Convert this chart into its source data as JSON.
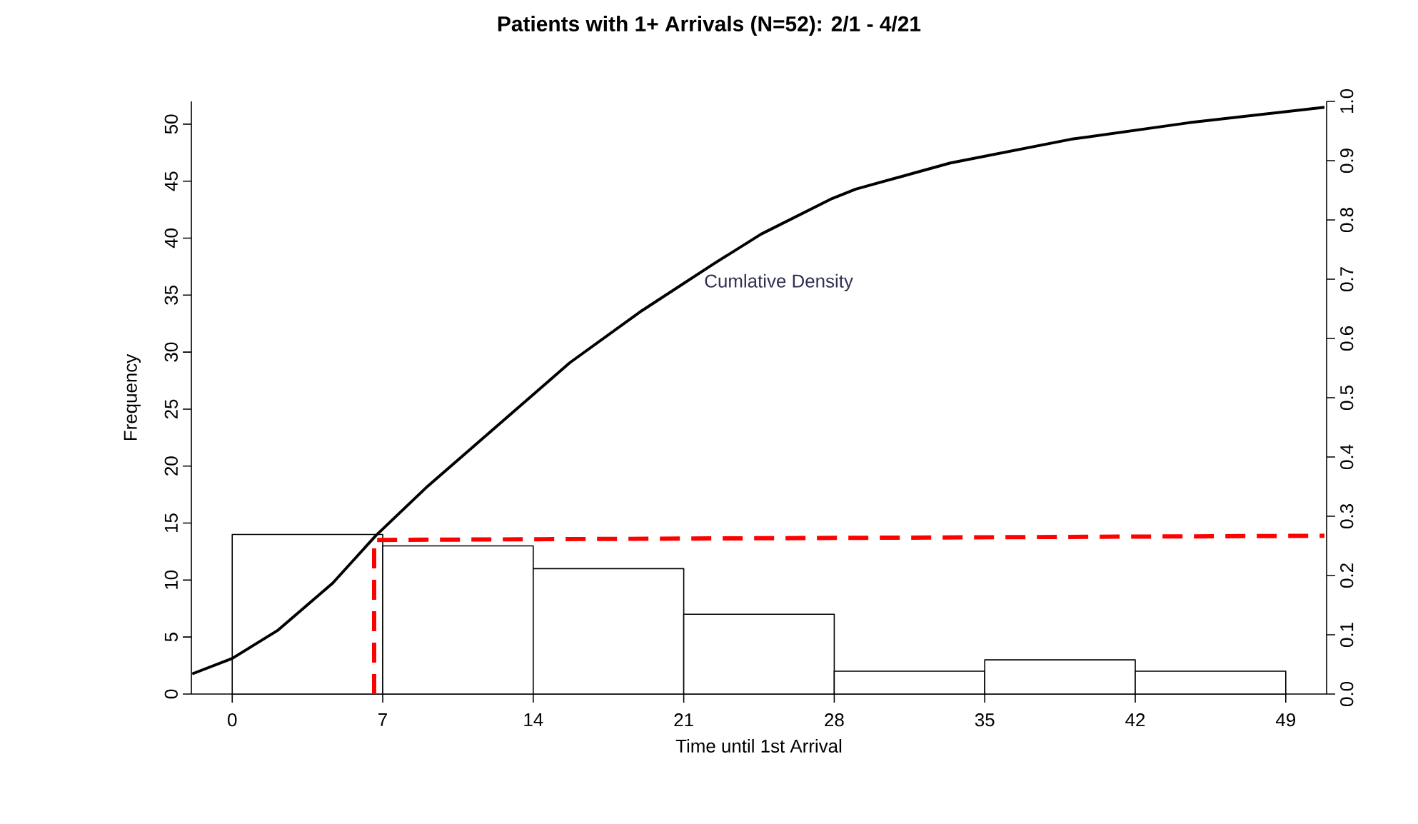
{
  "chart_data": {
    "type": "histogram",
    "title": "Patients with 1+ Arrivals (N=52): 2/1 - 4/21",
    "xlabel": "Time until 1st Arrival",
    "ylabel": "Frequency",
    "bins": [
      0,
      7,
      14,
      21,
      28,
      35,
      42,
      49
    ],
    "values": [
      14,
      13,
      11,
      7,
      2,
      3,
      2
    ],
    "color": "#ffffff",
    "series": [
      {
        "type": "line",
        "name": "Cumlative Density",
        "axis": "y2",
        "color": "#000000",
        "line_style": "solid",
        "x": [
          -1.86,
          0,
          2.1,
          4.67,
          6.67,
          9.1,
          12.4,
          15.7,
          19.06,
          22.4,
          24.6,
          27.9,
          29.0,
          33.4,
          39.0,
          44.5,
          50.8
        ],
        "values": [
          0.034,
          0.06,
          0.107,
          0.187,
          0.267,
          0.351,
          0.455,
          0.559,
          0.647,
          0.726,
          0.776,
          0.836,
          0.852,
          0.896,
          0.936,
          0.964,
          0.99
        ]
      },
      {
        "type": "line",
        "axis": "y2",
        "color": "#ff0000",
        "line_style": "dashed",
        "x": [
          6.6,
          6.6,
          50.8
        ],
        "values": [
          0,
          0.26,
          0.267
        ]
      }
    ],
    "xlim": [
      -1.9,
      50.9
    ],
    "ylim": [
      0,
      52
    ],
    "y2lim": [
      0,
      1.0
    ],
    "xticks": [
      0,
      7,
      14,
      21,
      28,
      35,
      42,
      49
    ],
    "yticks": [
      0,
      5,
      10,
      15,
      20,
      25,
      30,
      35,
      40,
      45,
      50
    ],
    "y2ticks": [
      {
        "value": 0,
        "label": "0.0"
      },
      {
        "value": 0.1,
        "label": "0.1"
      },
      {
        "value": 0.2,
        "label": "0.2"
      },
      {
        "value": 0.3,
        "label": "0.3"
      },
      {
        "value": 0.4,
        "label": "0.4"
      },
      {
        "value": 0.5,
        "label": "0.5"
      },
      {
        "value": 0.6,
        "label": "0.6"
      },
      {
        "value": 0.7,
        "label": "0.7"
      },
      {
        "value": 0.8,
        "label": "0.8"
      },
      {
        "value": 0.9,
        "label": "0.9"
      },
      {
        "value": 1.0,
        "label": "1.0"
      }
    ],
    "grid": false
  }
}
